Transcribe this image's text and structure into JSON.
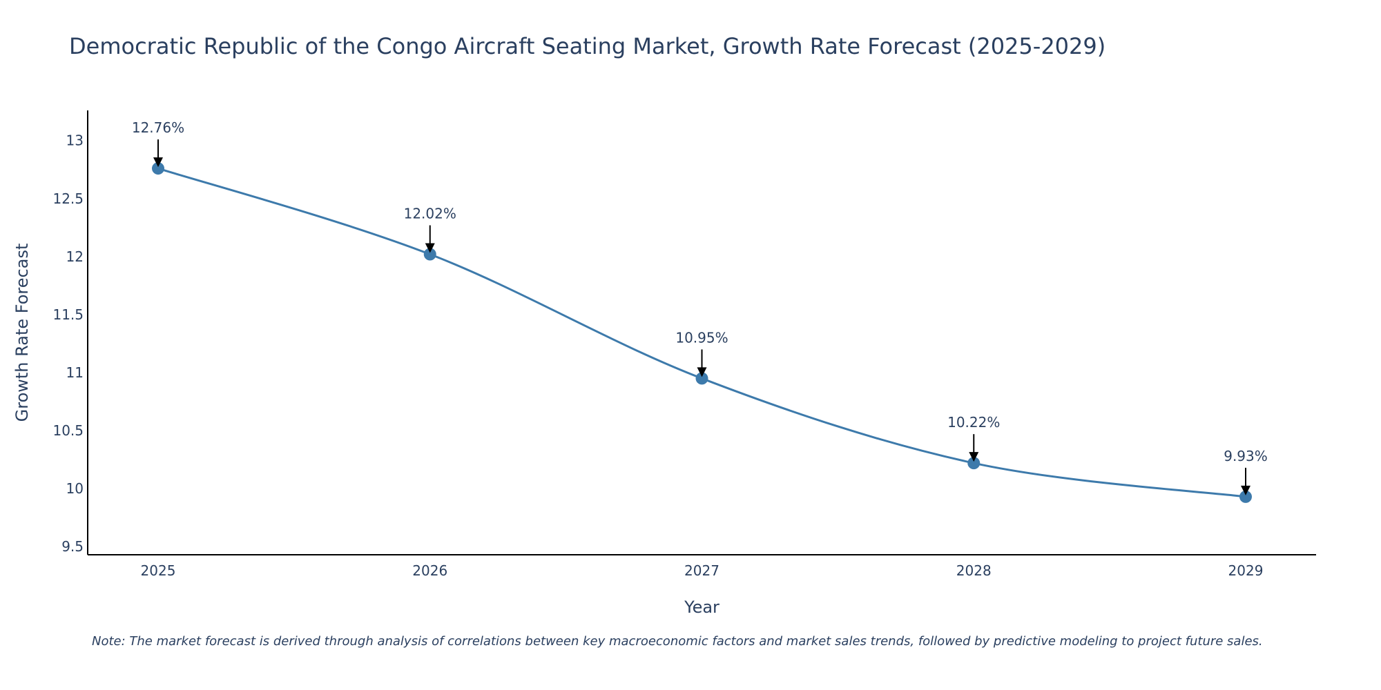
{
  "chart_data": {
    "type": "line",
    "title": "Democratic Republic of the Congo Aircraft Seating Market, Growth Rate Forecast (2025-2029)",
    "xlabel": "Year",
    "ylabel": "Growth Rate Forecast",
    "categories": [
      "2025",
      "2026",
      "2027",
      "2028",
      "2029"
    ],
    "series": [
      {
        "name": "Growth Rate Forecast",
        "values": [
          12.76,
          12.02,
          10.95,
          10.22,
          9.93
        ],
        "labels": [
          "12.76%",
          "12.02%",
          "10.95%",
          "10.22%",
          "9.93%"
        ]
      }
    ],
    "ylim": [
      9.43,
      13.26
    ],
    "yticks": [
      9.5,
      10,
      10.5,
      11,
      11.5,
      12,
      12.5,
      13
    ],
    "ytick_labels": [
      "9.5",
      "10",
      "10.5",
      "11",
      "11.5",
      "12",
      "12.5",
      "13"
    ],
    "grid": false,
    "legend": "none",
    "line_color": "#3d7aab",
    "note": "Note: The market forecast is derived through analysis of correlations between key macroeconomic factors and market sales trends, followed by predictive modeling to project future sales."
  }
}
